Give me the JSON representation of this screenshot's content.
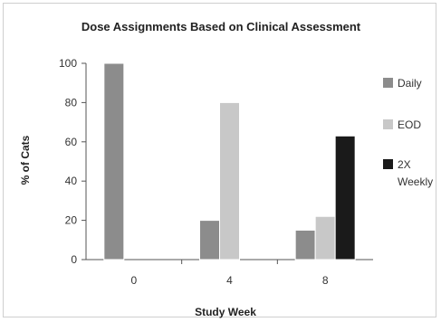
{
  "chart_data": {
    "type": "bar",
    "title": "Dose Assignments Based on Clinical Assessment",
    "xlabel": "Study Week",
    "ylabel": "% of Cats",
    "categories": [
      "0",
      "4",
      "8"
    ],
    "yticks": [
      0,
      20,
      40,
      60,
      80,
      100
    ],
    "ylim": [
      0,
      100
    ],
    "grid": false,
    "legend_position": "right",
    "series": [
      {
        "name": "Daily",
        "values": [
          100,
          20,
          15
        ],
        "color": "#8c8c8c"
      },
      {
        "name": "EOD",
        "values": [
          0,
          80,
          22
        ],
        "color": "#c8c8c8"
      },
      {
        "name": "2X Weekly",
        "name_lines": [
          "2X",
          "Weekly"
        ],
        "values": [
          0,
          0,
          63
        ],
        "color": "#1a1a1a"
      }
    ]
  }
}
